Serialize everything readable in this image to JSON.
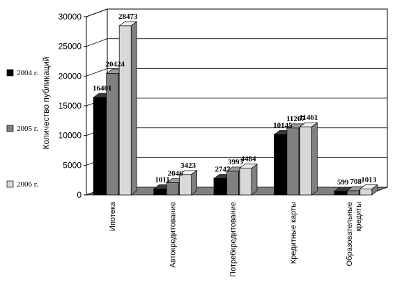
{
  "chart_data": {
    "type": "bar",
    "ylabel": "Количество публикаций",
    "ylim": [
      0,
      30000
    ],
    "yticks": [
      0,
      5000,
      10000,
      15000,
      20000,
      25000,
      30000
    ],
    "categories": [
      [
        "Ипотека"
      ],
      [
        "Автокредитование"
      ],
      [
        "Потребкредитование"
      ],
      [
        "Кредитные карты"
      ],
      [
        "Образовательные",
        "кредиты"
      ]
    ],
    "series": [
      {
        "name": "2004 г.",
        "color": "#000000",
        "side": "#000000",
        "top": "#3a3a3a",
        "values": [
          16401,
          1011,
          2747,
          10145,
          599
        ]
      },
      {
        "name": "2005 г.",
        "color": "#808080",
        "side": "#555555",
        "top": "#9a9a9a",
        "values": [
          20424,
          2046,
          3993,
          11267,
          708
        ]
      },
      {
        "name": "2006 г.",
        "color": "#d8d8d8",
        "side": "#808080",
        "top": "#ececec",
        "values": [
          28473,
          3423,
          4484,
          11461,
          1013
        ]
      }
    ],
    "legend_position": "left",
    "grid": true,
    "three_d": true
  }
}
